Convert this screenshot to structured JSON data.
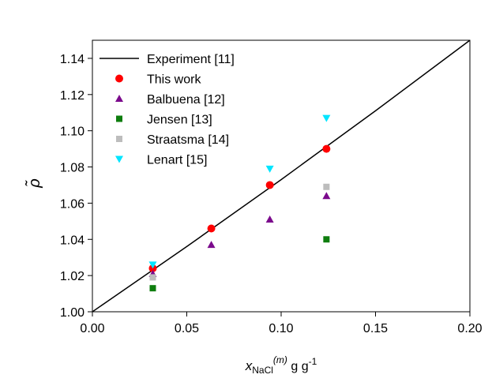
{
  "chart_data": {
    "type": "scatter",
    "xlabel": {
      "symbol": "x",
      "subscript": "NaCl",
      "superscript": "(m)",
      "units": " g g",
      "units_exp": "-1"
    },
    "ylabel": "ρ̃",
    "xlim": [
      0.0,
      0.2
    ],
    "ylim": [
      1.0,
      1.15
    ],
    "x_ticks": [
      "0.00",
      "0.05",
      "0.10",
      "0.15",
      "0.20"
    ],
    "y_ticks": [
      "1.00",
      "1.02",
      "1.04",
      "1.06",
      "1.08",
      "1.10",
      "1.12",
      "1.14"
    ],
    "x_tick_values": [
      0.0,
      0.05,
      0.1,
      0.15,
      0.2
    ],
    "y_tick_values": [
      1.0,
      1.02,
      1.04,
      1.06,
      1.08,
      1.1,
      1.12,
      1.14
    ],
    "legend_position": "top-left",
    "series": [
      {
        "name": "Experiment [11]",
        "kind": "line",
        "color": "#000000",
        "x": [
          0.0,
          0.05,
          0.1,
          0.15,
          0.2
        ],
        "y": [
          1.0,
          1.036,
          1.073,
          1.111,
          1.15
        ]
      },
      {
        "name": "This work",
        "kind": "circle",
        "color": "#ff0000",
        "x": [
          0.032,
          0.063,
          0.094,
          0.124
        ],
        "y": [
          1.024,
          1.046,
          1.07,
          1.09
        ]
      },
      {
        "name": "Balbuena [12]",
        "kind": "triangle-up",
        "color": "#7b0a8c",
        "x": [
          0.032,
          0.063,
          0.094,
          0.124
        ],
        "y": [
          1.021,
          1.037,
          1.051,
          1.064
        ]
      },
      {
        "name": "Jensen [13]",
        "kind": "square",
        "color": "#0e7d0e",
        "x": [
          0.032,
          0.124
        ],
        "y": [
          1.013,
          1.04
        ]
      },
      {
        "name": "Straatsma [14]",
        "kind": "square",
        "color": "#bdbdbd",
        "x": [
          0.032,
          0.124
        ],
        "y": [
          1.019,
          1.069
        ]
      },
      {
        "name": "Lenart [15]",
        "kind": "triangle-down",
        "color": "#00e5ff",
        "x": [
          0.032,
          0.094,
          0.124
        ],
        "y": [
          1.026,
          1.079,
          1.107
        ]
      }
    ]
  }
}
